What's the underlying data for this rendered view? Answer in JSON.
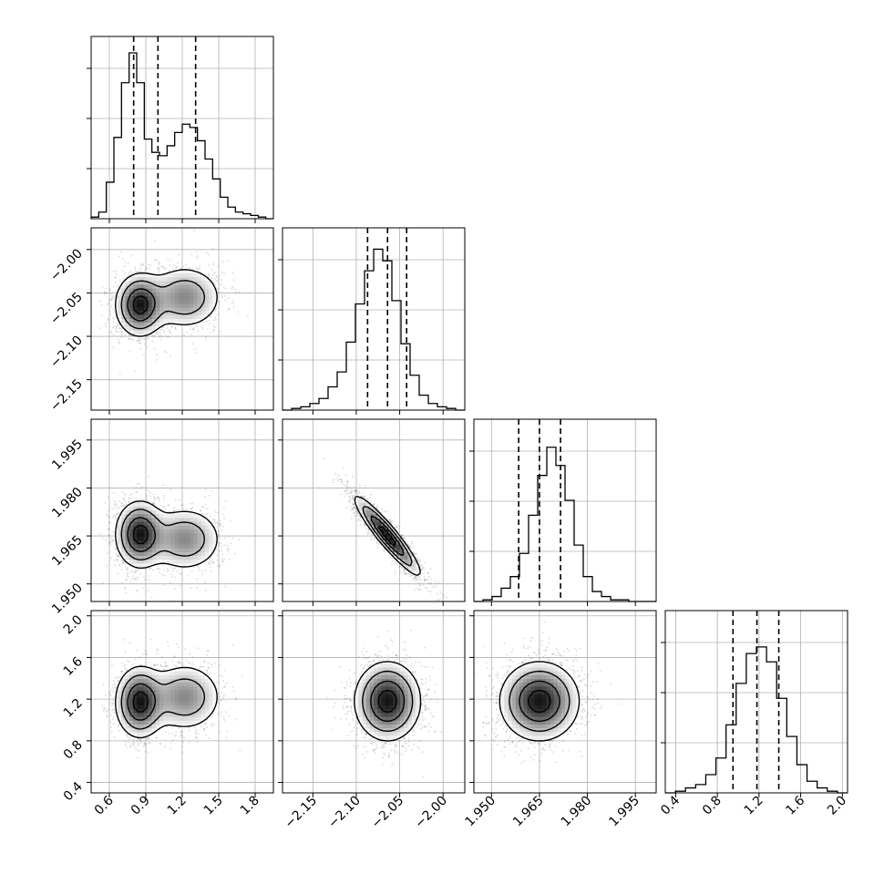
{
  "chart_data": {
    "type": "corner",
    "title": "",
    "parameters": [
      {
        "ticks": [
          0.6,
          0.9,
          1.2,
          1.5,
          1.8
        ],
        "tick_labels": [
          "0.6",
          "0.9",
          "1.2",
          "1.5",
          "1.8"
        ],
        "range": [
          0.45,
          1.95
        ],
        "quantiles": [
          0.8,
          1.0,
          1.31
        ]
      },
      {
        "ticks": [
          -2.15,
          -2.1,
          -2.05,
          -2.0
        ],
        "tick_labels": [
          "−2.15",
          "−2.10",
          "−2.05",
          "−2.00"
        ],
        "range": [
          -2.185,
          -1.975
        ],
        "quantiles": [
          -2.087,
          -2.064,
          -2.042
        ]
      },
      {
        "ticks": [
          1.95,
          1.965,
          1.98,
          1.995
        ],
        "tick_labels": [
          "1.950",
          "1.965",
          "1.980",
          "1.995"
        ],
        "range": [
          1.9445,
          2.0015
        ],
        "quantiles": [
          1.9585,
          1.965,
          1.9716
        ]
      },
      {
        "ticks": [
          0.4,
          0.8,
          1.2,
          1.6,
          2.0
        ],
        "tick_labels": [
          "0.4",
          "0.8",
          "1.2",
          "1.6",
          "2.0"
        ],
        "range": [
          0.3,
          2.05
        ],
        "quantiles": [
          0.95,
          1.18,
          1.39
        ]
      }
    ],
    "histograms": [
      {
        "param": 0,
        "counts": [
          0.01,
          0.04,
          0.22,
          0.49,
          0.82,
          1.0,
          0.82,
          0.48,
          0.4,
          0.38,
          0.44,
          0.52,
          0.57,
          0.55,
          0.47,
          0.36,
          0.24,
          0.13,
          0.07,
          0.04,
          0.03,
          0.02,
          0.01,
          0.0
        ]
      },
      {
        "param": 1,
        "counts": [
          0.0,
          0.01,
          0.02,
          0.04,
          0.07,
          0.14,
          0.23,
          0.41,
          0.64,
          0.84,
          0.97,
          0.9,
          0.66,
          0.4,
          0.21,
          0.09,
          0.04,
          0.02,
          0.01,
          0.0
        ]
      },
      {
        "param": 2,
        "counts": [
          0.0,
          0.01,
          0.03,
          0.08,
          0.15,
          0.29,
          0.52,
          0.76,
          0.93,
          0.82,
          0.61,
          0.34,
          0.15,
          0.06,
          0.03,
          0.01,
          0.01,
          0.0,
          0.0,
          0.0
        ]
      },
      {
        "param": 3,
        "counts": [
          0.0,
          0.01,
          0.03,
          0.05,
          0.11,
          0.21,
          0.41,
          0.66,
          0.84,
          0.88,
          0.79,
          0.57,
          0.34,
          0.17,
          0.07,
          0.03,
          0.01,
          0.0
        ]
      }
    ],
    "pairs": [
      {
        "x": 0,
        "y": 1,
        "modes": [
          {
            "cx": 0.85,
            "cy": -2.064,
            "sx": 0.1,
            "sy": 0.018,
            "w": 1.0
          },
          {
            "cx": 1.22,
            "cy": -2.055,
            "sx": 0.16,
            "sy": 0.019,
            "w": 0.55
          }
        ]
      },
      {
        "x": 0,
        "y": 2,
        "modes": [
          {
            "cx": 0.85,
            "cy": 1.9655,
            "sx": 0.1,
            "sy": 0.0052,
            "w": 1.0
          },
          {
            "cx": 1.22,
            "cy": 1.964,
            "sx": 0.16,
            "sy": 0.0052,
            "w": 0.55
          }
        ]
      },
      {
        "x": 0,
        "y": 3,
        "modes": [
          {
            "cx": 0.85,
            "cy": 1.17,
            "sx": 0.1,
            "sy": 0.17,
            "w": 1.0
          },
          {
            "cx": 1.22,
            "cy": 1.22,
            "sx": 0.16,
            "sy": 0.17,
            "w": 0.55
          }
        ]
      },
      {
        "x": 1,
        "y": 2,
        "correlation": -0.93,
        "modes": [
          {
            "cx": -2.064,
            "cy": 1.965,
            "sx": 0.019,
            "sy": 0.0062,
            "w": 1.0
          }
        ]
      },
      {
        "x": 1,
        "y": 3,
        "modes": [
          {
            "cx": -2.064,
            "cy": 1.18,
            "sx": 0.019,
            "sy": 0.19,
            "w": 1.0
          }
        ]
      },
      {
        "x": 2,
        "y": 3,
        "modes": [
          {
            "cx": 1.965,
            "cy": 1.18,
            "sx": 0.0062,
            "sy": 0.19,
            "w": 1.0
          }
        ]
      }
    ],
    "grid": true,
    "colors": {
      "line": "#000000",
      "grid": "#b0b0b0",
      "density_max": "#000000",
      "density_min": "#ffffff",
      "points": "#000000"
    }
  }
}
